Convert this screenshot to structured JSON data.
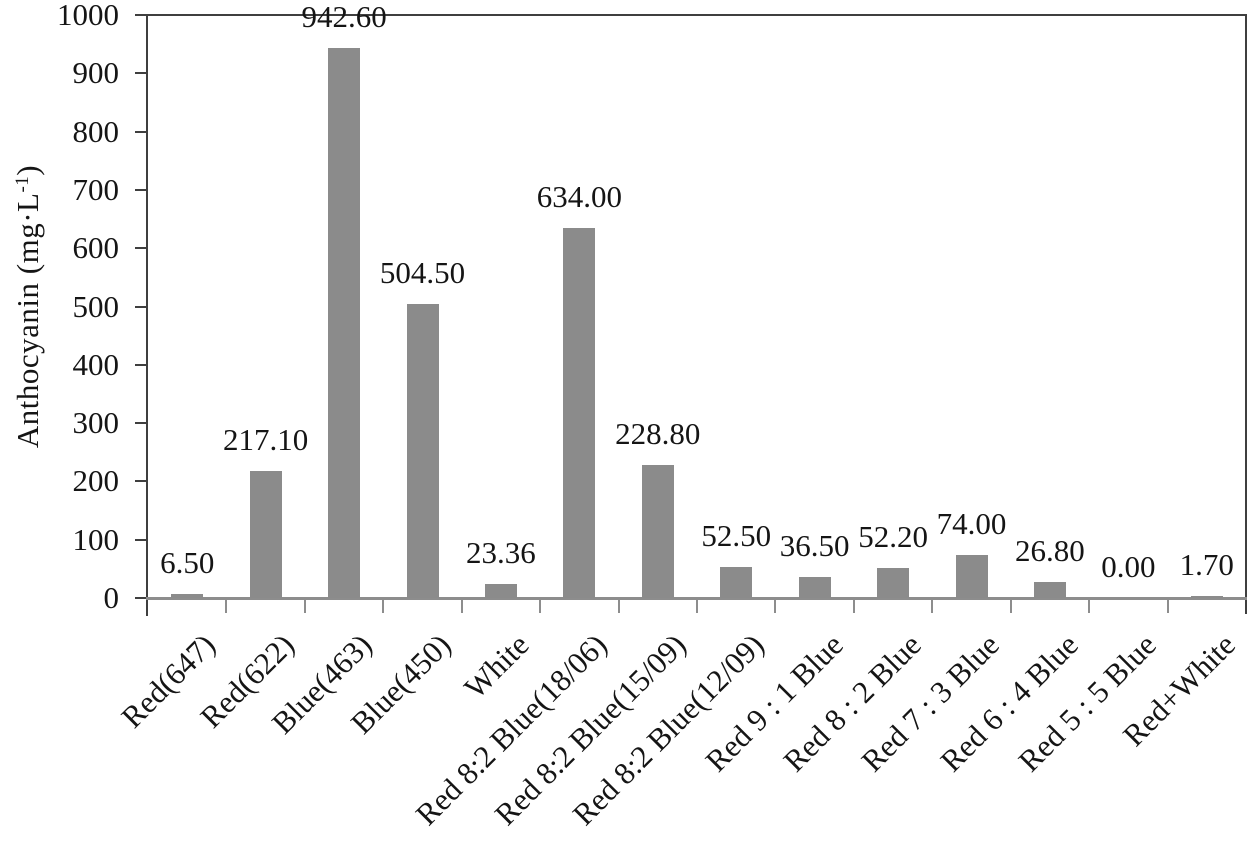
{
  "chart_data": {
    "type": "bar",
    "title": "",
    "xlabel": "",
    "ylabel": "Anthocyanin (mg·L⁻¹)",
    "ylabel_parts": {
      "main": "Anthocyanin (mg·L",
      "sup": "-1",
      "close": ")"
    },
    "categories": [
      "Red(647)",
      "Red(622)",
      "Blue(463)",
      "Blue(450)",
      "White",
      "Red 8:2 Blue(18/06)",
      "Red 8:2 Blue(15/09)",
      "Red 8:2 Blue(12/09)",
      "Red 9 : 1 Blue",
      "Red 8 : 2 Blue",
      "Red 7 : 3 Blue",
      "Red 6 : 4 Blue",
      "Red 5 : 5 Blue",
      "Red+White"
    ],
    "values": [
      6.5,
      217.1,
      942.6,
      504.5,
      23.36,
      634.0,
      228.8,
      52.5,
      36.5,
      52.2,
      74.0,
      26.8,
      0.0,
      1.7
    ],
    "data_labels": [
      "6.50",
      "217.10",
      "942.60",
      "504.50",
      "23.36",
      "634.00",
      "228.80",
      "52.50",
      "36.50",
      "52.20",
      "74.00",
      "26.80",
      "0.00",
      "1.70"
    ],
    "y_ticks": [
      0,
      100,
      200,
      300,
      400,
      500,
      600,
      700,
      800,
      900,
      1000
    ],
    "ylim": [
      0,
      1000
    ],
    "grid": false,
    "legend": null,
    "x_tick_label_rotation_deg": -45,
    "colors": {
      "bar": "#8b8b8b",
      "axis_dark": "#3f3f3f",
      "axis_light": "#8d8d8d",
      "text": "#151515",
      "background": "#ffffff"
    }
  }
}
